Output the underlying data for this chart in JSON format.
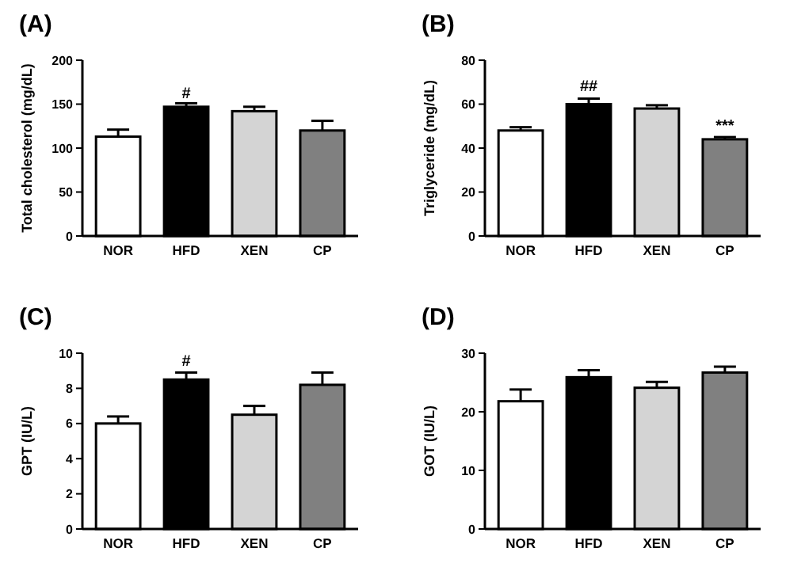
{
  "chart_data": [
    {
      "type": "bar",
      "title": "(A)",
      "ylabel": "Total cholesterol (mg/dL)",
      "categories": [
        "NOR",
        "HFD",
        "XEN",
        "CP"
      ],
      "values": [
        113,
        147,
        142,
        120
      ],
      "errors": [
        8,
        4,
        5,
        11
      ],
      "colors": [
        "#ffffff",
        "#000000",
        "#d4d4d4",
        "#808080"
      ],
      "ylim": [
        0,
        200
      ],
      "yticks": [
        0,
        50,
        100,
        150,
        200
      ],
      "annotations": [
        {
          "text": "#",
          "x": "HFD",
          "y": 157
        }
      ]
    },
    {
      "type": "bar",
      "title": "(B)",
      "ylabel": "Triglyceride (mg/dL)",
      "categories": [
        "NOR",
        "HFD",
        "XEN",
        "CP"
      ],
      "values": [
        48,
        60,
        58,
        44
      ],
      "errors": [
        1.5,
        2.5,
        1.5,
        1
      ],
      "colors": [
        "#ffffff",
        "#000000",
        "#d4d4d4",
        "#808080"
      ],
      "ylim": [
        0,
        80
      ],
      "yticks": [
        0,
        20,
        40,
        60,
        80
      ],
      "annotations": [
        {
          "text": "##",
          "x": "HFD",
          "y": 66
        },
        {
          "text": "***",
          "x": "CP",
          "y": 48
        }
      ]
    },
    {
      "type": "bar",
      "title": "(C)",
      "ylabel": "GPT (IU/L)",
      "categories": [
        "NOR",
        "HFD",
        "XEN",
        "CP"
      ],
      "values": [
        6.0,
        8.5,
        6.5,
        8.2
      ],
      "errors": [
        0.4,
        0.4,
        0.5,
        0.7
      ],
      "colors": [
        "#ffffff",
        "#000000",
        "#d4d4d4",
        "#808080"
      ],
      "ylim": [
        0,
        10
      ],
      "yticks": [
        0,
        2,
        4,
        6,
        8,
        10
      ],
      "annotations": [
        {
          "text": "#",
          "x": "HFD",
          "y": 9.3
        }
      ]
    },
    {
      "type": "bar",
      "title": "(D)",
      "ylabel": "GOT (IU/L)",
      "categories": [
        "NOR",
        "HFD",
        "XEN",
        "CP"
      ],
      "values": [
        21.8,
        25.9,
        24.1,
        26.7
      ],
      "errors": [
        2,
        1.2,
        1,
        1
      ],
      "colors": [
        "#ffffff",
        "#000000",
        "#d4d4d4",
        "#808080"
      ],
      "ylim": [
        0,
        30
      ],
      "yticks": [
        0,
        10,
        20,
        30
      ]
    }
  ]
}
